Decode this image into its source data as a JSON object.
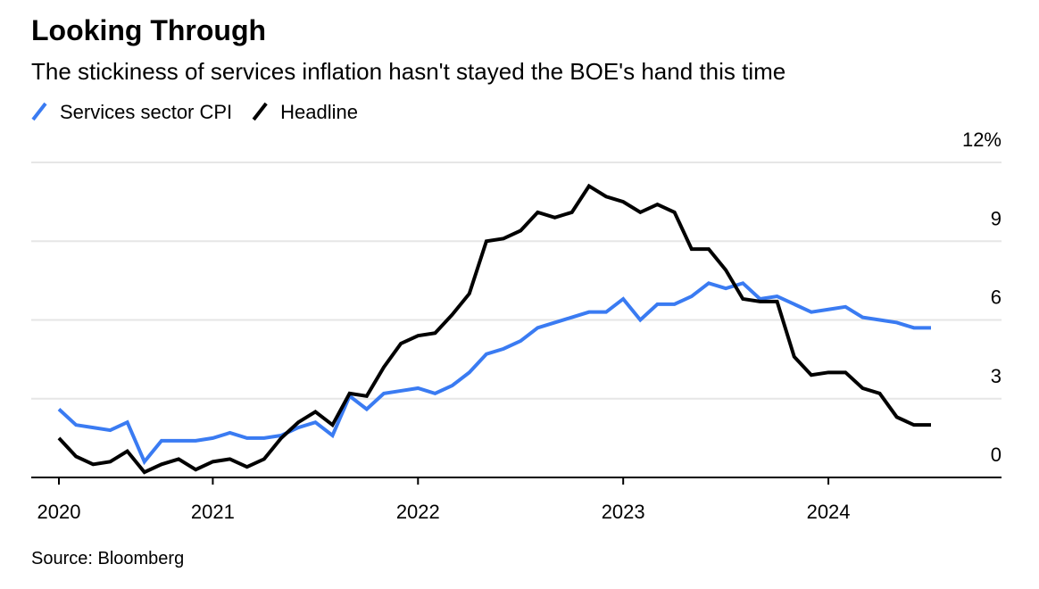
{
  "chart_data": {
    "type": "line",
    "title": "Looking Through",
    "subtitle": "The stickiness of services inflation hasn't stayed the BOE's hand this time",
    "source": "Source: Bloomberg",
    "categories": [
      "2020",
      null,
      null,
      null,
      null,
      null,
      null,
      null,
      null,
      "2021",
      null,
      null,
      null,
      null,
      null,
      null,
      null,
      null,
      null,
      null,
      null,
      "2022",
      null,
      null,
      null,
      null,
      null,
      null,
      null,
      null,
      null,
      null,
      null,
      "2023",
      null,
      null,
      null,
      null,
      null,
      null,
      null,
      null,
      null,
      null,
      null,
      "2024",
      null,
      null,
      null,
      null,
      null,
      null
    ],
    "series": [
      {
        "name": "Services sector CPI",
        "color": "#3a7bf2",
        "values": [
          2.6,
          2.0,
          1.9,
          1.8,
          2.1,
          0.6,
          1.4,
          1.4,
          1.4,
          1.5,
          1.7,
          1.5,
          1.5,
          1.6,
          1.9,
          2.1,
          1.6,
          3.1,
          2.6,
          3.2,
          3.3,
          3.4,
          3.2,
          3.5,
          4.0,
          4.7,
          4.9,
          5.2,
          5.7,
          5.9,
          6.1,
          6.3,
          6.3,
          6.8,
          6.0,
          6.6,
          6.6,
          6.9,
          7.4,
          7.2,
          7.4,
          6.8,
          6.9,
          6.6,
          6.3,
          6.4,
          6.5,
          6.1,
          6.0,
          5.9,
          5.7,
          5.7
        ]
      },
      {
        "name": "Headline",
        "color": "#000000",
        "values": [
          1.5,
          0.8,
          0.5,
          0.6,
          1.0,
          0.2,
          0.5,
          0.7,
          0.3,
          0.6,
          0.7,
          0.4,
          0.7,
          1.5,
          2.1,
          2.5,
          2.0,
          3.2,
          3.1,
          4.2,
          5.1,
          5.4,
          5.5,
          6.2,
          7.0,
          9.0,
          9.1,
          9.4,
          10.1,
          9.9,
          10.1,
          11.1,
          10.7,
          10.5,
          10.1,
          10.4,
          10.1,
          8.7,
          8.7,
          7.9,
          6.8,
          6.7,
          6.7,
          4.6,
          3.9,
          4.0,
          4.0,
          3.4,
          3.2,
          2.3,
          2.0,
          2.0
        ]
      }
    ],
    "ylim": [
      0,
      12
    ],
    "yticks": [
      0,
      3,
      6,
      9,
      {
        "value": 12,
        "label": "12%"
      }
    ],
    "grid": true
  }
}
